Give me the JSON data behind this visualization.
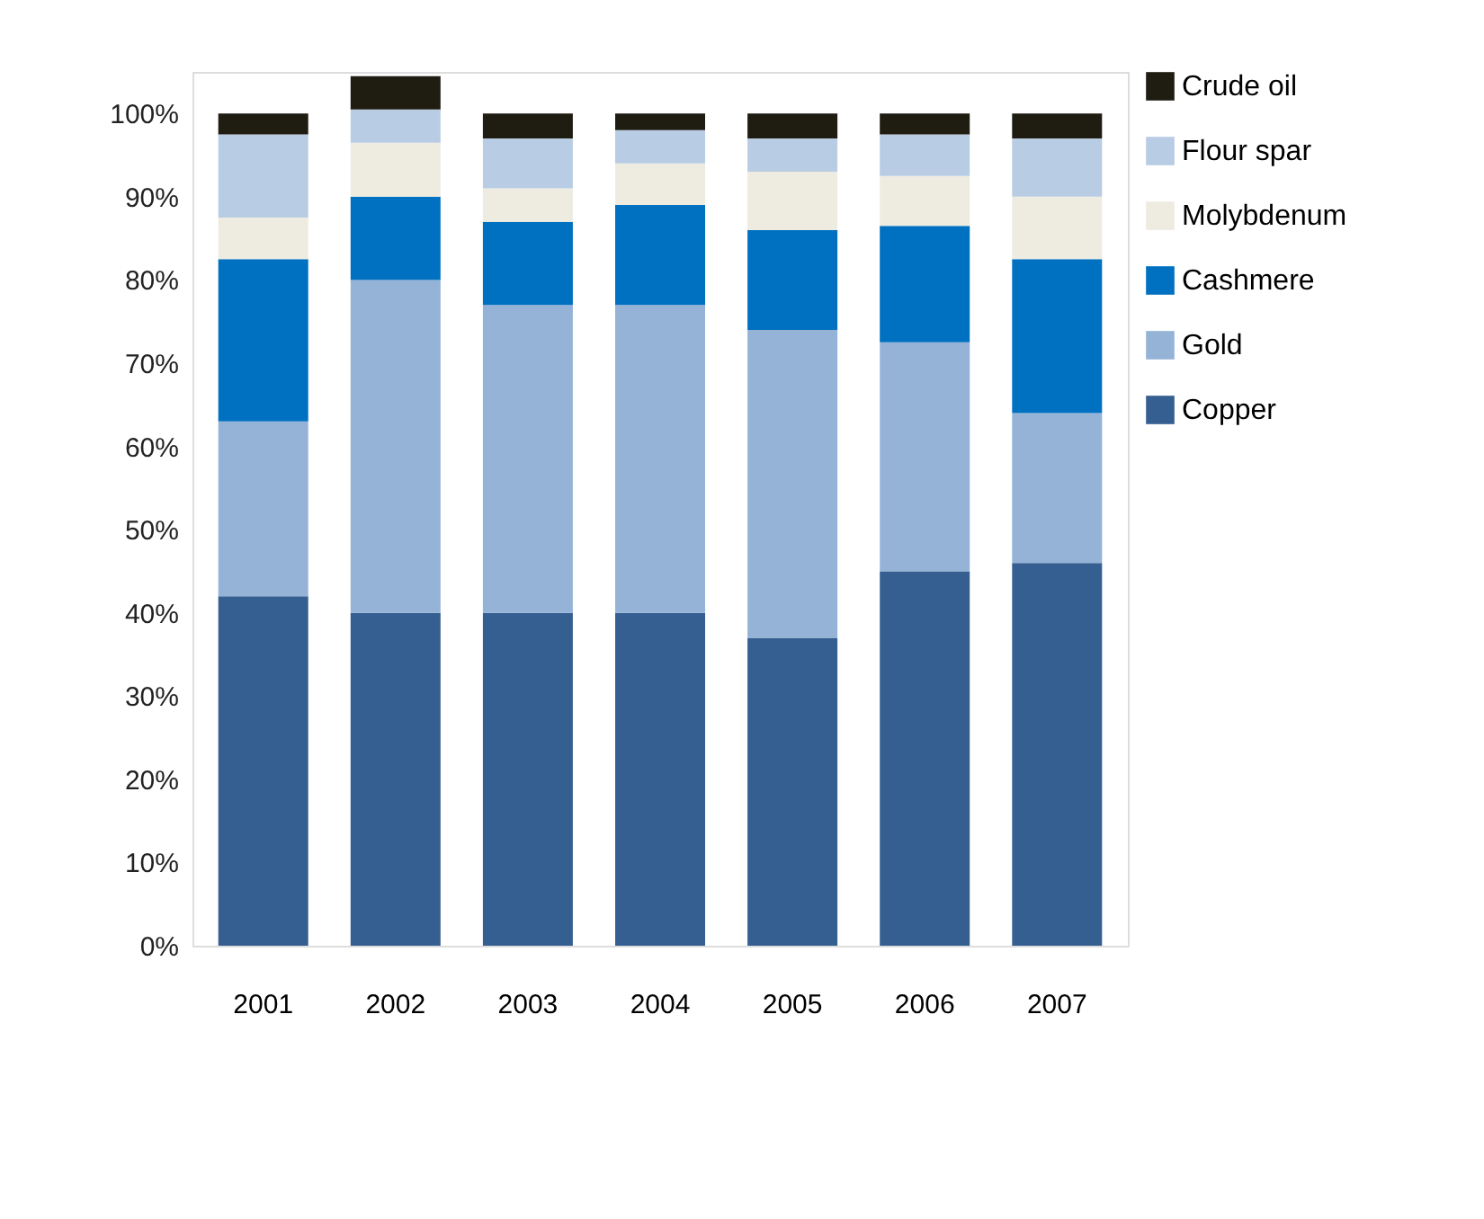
{
  "chart_data": {
    "type": "bar",
    "stacked": true,
    "categories": [
      "2001",
      "2002",
      "2003",
      "2004",
      "2005",
      "2006",
      "2007"
    ],
    "series": [
      {
        "name": "Copper",
        "color": "#355f91",
        "values": [
          42,
          40,
          40,
          40,
          37,
          45,
          46
        ]
      },
      {
        "name": "Gold",
        "color": "#95b3d7",
        "values": [
          21,
          40,
          37,
          37,
          37,
          27.5,
          18
        ]
      },
      {
        "name": "Cashmere",
        "color": "#0070c0",
        "values": [
          19.5,
          10,
          10,
          12,
          12,
          14,
          18.5
        ]
      },
      {
        "name": "Molybdenum",
        "color": "#eeece1",
        "values": [
          5,
          6.5,
          4,
          5,
          7,
          6,
          7.5
        ]
      },
      {
        "name": "Flour spar",
        "color": "#b8cce4",
        "values": [
          10,
          4,
          6,
          4,
          4,
          5,
          7
        ]
      },
      {
        "name": "Crude oil",
        "color": "#1f1c12",
        "values": [
          2.5,
          4,
          3,
          2,
          3,
          2.5,
          3
        ]
      }
    ],
    "ylim": [
      0,
      105
    ],
    "yticks": [
      {
        "value": 0,
        "label": "0%"
      },
      {
        "value": 10,
        "label": "10%"
      },
      {
        "value": 20,
        "label": "20%"
      },
      {
        "value": 30,
        "label": "30%"
      },
      {
        "value": 40,
        "label": "40%"
      },
      {
        "value": 50,
        "label": "50%"
      },
      {
        "value": 60,
        "label": "60%"
      },
      {
        "value": 70,
        "label": "70%"
      },
      {
        "value": 80,
        "label": "80%"
      },
      {
        "value": 90,
        "label": "90%"
      },
      {
        "value": 100,
        "label": "100%"
      }
    ],
    "grid": false,
    "legend": "right"
  }
}
